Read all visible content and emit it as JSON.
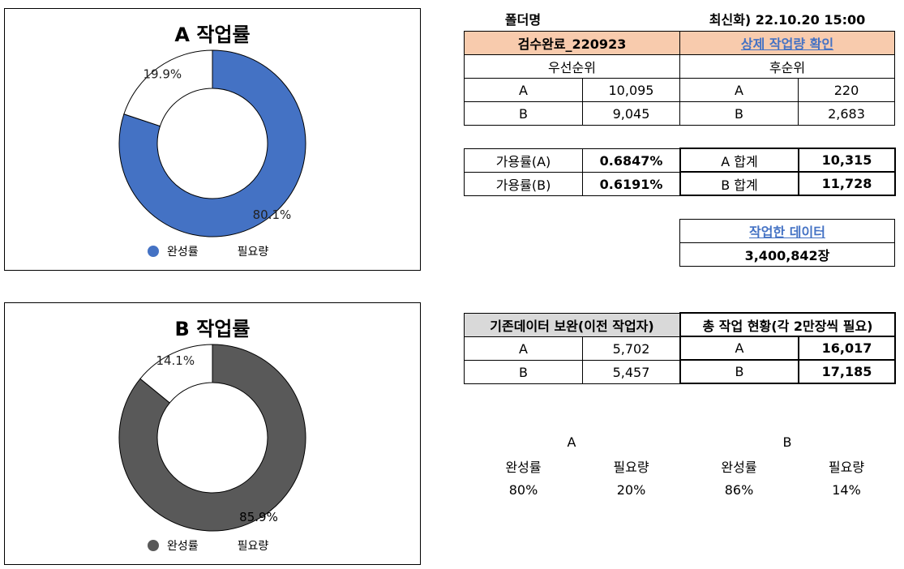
{
  "chart_data": [
    {
      "type": "pie",
      "title": "A 작업률",
      "categories": [
        "완성률",
        "필요량"
      ],
      "values": [
        80.1,
        19.9
      ],
      "value_labels": [
        "80.1%",
        "19.9%"
      ],
      "colors": [
        "#4472c4",
        "#ffffff"
      ],
      "legend_position": "bottom"
    },
    {
      "type": "pie",
      "title": "B 작업률",
      "categories": [
        "완성률",
        "필요량"
      ],
      "values": [
        85.9,
        14.1
      ],
      "value_labels": [
        "85.9%",
        "14.1%"
      ],
      "colors": [
        "#595959",
        "#ffffff"
      ],
      "legend_position": "bottom"
    }
  ],
  "header": {
    "folder_label": "폴더명",
    "refresh": "최신화) 22.10.20 15:00"
  },
  "folder_table": {
    "left_header": "검수완료_220923",
    "right_header": "상제 작업량 확인",
    "left_sub": "우선순위",
    "right_sub": "후순위",
    "rows": [
      {
        "a": "A",
        "b": "10,095",
        "c": "A",
        "d": "220"
      },
      {
        "a": "B",
        "b": "9,045",
        "c": "B",
        "d": "2,683"
      }
    ]
  },
  "availability": {
    "rows": [
      {
        "label": "가용률(A)",
        "value": "0.6847%",
        "sum_label": "A 합계",
        "sum_value": "10,315"
      },
      {
        "label": "가용률(B)",
        "value": "0.6191%",
        "sum_label": "B 합계",
        "sum_value": "11,728"
      }
    ]
  },
  "worked": {
    "title": "작업한 데이터",
    "value": "3,400,842장"
  },
  "supplement": {
    "left_header": "기존데이터 보완(이전 작업자)",
    "right_header": "총 작업 현황(각 2만장씩 필요)",
    "rows": [
      {
        "a": "A",
        "b": "5,702",
        "c": "A",
        "d": "16,017"
      },
      {
        "a": "B",
        "b": "5,457",
        "c": "B",
        "d": "17,185"
      }
    ]
  },
  "summary": {
    "A": {
      "label": "A",
      "col1": "완성률",
      "col2": "필요량",
      "val1": "80%",
      "val2": "20%"
    },
    "B": {
      "label": "B",
      "col1": "완성률",
      "col2": "필요량",
      "val1": "86%",
      "val2": "14%"
    }
  }
}
